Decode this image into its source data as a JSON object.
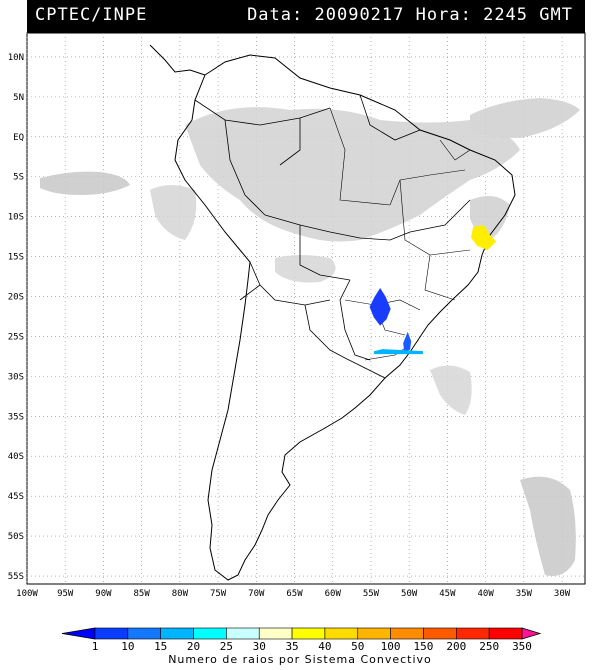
{
  "header": {
    "source": "CPTEC/INPE",
    "data_label": "Data:",
    "date": "20090217",
    "hora_label": "Hora:",
    "time": "2245",
    "tz": "GMT"
  },
  "axes": {
    "lat_labels": [
      "10N",
      "5N",
      "EQ",
      "5S",
      "10S",
      "15S",
      "20S",
      "25S",
      "30S",
      "35S",
      "40S",
      "45S",
      "50S",
      "55S"
    ],
    "lat_values": [
      10,
      5,
      0,
      -5,
      -10,
      -15,
      -20,
      -25,
      -30,
      -35,
      -40,
      -45,
      -50,
      -55
    ],
    "lon_labels": [
      "100W",
      "95W",
      "90W",
      "85W",
      "80W",
      "75W",
      "70W",
      "65W",
      "60W",
      "55W",
      "50W",
      "45W",
      "40W",
      "35W",
      "30W"
    ],
    "lon_values": [
      -100,
      -95,
      -90,
      -85,
      -80,
      -75,
      -70,
      -65,
      -60,
      -55,
      -50,
      -45,
      -40,
      -35,
      -30
    ],
    "lon_range": [
      -100,
      -27
    ],
    "lat_range": [
      -56,
      13
    ]
  },
  "colorbar": {
    "labels": [
      "1",
      "10",
      "15",
      "20",
      "25",
      "30",
      "35",
      "40",
      "50",
      "100",
      "150",
      "200",
      "250",
      "350"
    ],
    "colors": [
      "#0000ff",
      "#0a3cff",
      "#1478ff",
      "#00b4ff",
      "#00ffff",
      "#c8ffff",
      "#ffffc8",
      "#ffff00",
      "#ffdc00",
      "#ffb400",
      "#ff8c00",
      "#ff5a00",
      "#ff2800",
      "#ff0000",
      "#ff1493"
    ],
    "title": "Numero de raios por Sistema Convectivo"
  },
  "systems": [
    {
      "name": "blue-cluster-mato-grosso-do-sul",
      "color": "#1a3cff",
      "lon": -53.8,
      "lat": -20.8
    },
    {
      "name": "blue-cluster-parana",
      "color": "#1a5cff",
      "lon": -50.2,
      "lat": -25.6
    },
    {
      "name": "cyan-cluster-south",
      "color": "#00b4ff",
      "lon": -53.5,
      "lat": -26.9
    },
    {
      "name": "yellow-cluster-bahia",
      "color": "#ffee00",
      "lon": -40.8,
      "lat": -12.6
    }
  ]
}
